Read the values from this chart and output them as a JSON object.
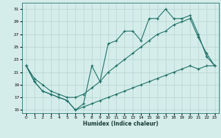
{
  "xlabel": "Humidex (Indice chaleur)",
  "bg_color": "#d4ecea",
  "grid_color": "#b8d8d4",
  "line_color": "#1a6e64",
  "x": [
    0,
    1,
    2,
    3,
    4,
    5,
    6,
    7,
    8,
    9,
    10,
    11,
    12,
    13,
    14,
    15,
    16,
    17,
    18,
    19,
    20,
    21,
    22,
    23
  ],
  "y_main": [
    22,
    19.5,
    18.0,
    17.5,
    17.0,
    16.5,
    15.0,
    16.0,
    22.0,
    19.5,
    25.5,
    26.0,
    27.5,
    27.5,
    26.0,
    29.5,
    29.5,
    31.0,
    29.5,
    29.5,
    30.0,
    27.0,
    23.5,
    22.0
  ],
  "y_upper": [
    22,
    20.0,
    19.0,
    18.0,
    17.5,
    17.0,
    17.0,
    17.5,
    18.5,
    19.5,
    21.0,
    22.0,
    23.0,
    24.0,
    25.0,
    26.0,
    27.0,
    27.5,
    28.5,
    29.0,
    29.5,
    26.5,
    24.0,
    22.0
  ],
  "y_lower": [
    22,
    19.5,
    18.0,
    17.5,
    17.0,
    16.5,
    15.0,
    15.5,
    16.0,
    16.5,
    17.0,
    17.5,
    18.0,
    18.5,
    19.0,
    19.5,
    20.0,
    20.5,
    21.0,
    21.5,
    22.0,
    21.5,
    22.0,
    22.0
  ],
  "ylim": [
    14.5,
    32
  ],
  "yticks": [
    15,
    17,
    19,
    21,
    23,
    25,
    27,
    29,
    31
  ],
  "xlim": [
    -0.5,
    23.5
  ],
  "xticks": [
    0,
    1,
    2,
    3,
    4,
    5,
    6,
    7,
    8,
    9,
    10,
    11,
    12,
    13,
    14,
    15,
    16,
    17,
    18,
    19,
    20,
    21,
    22,
    23
  ]
}
